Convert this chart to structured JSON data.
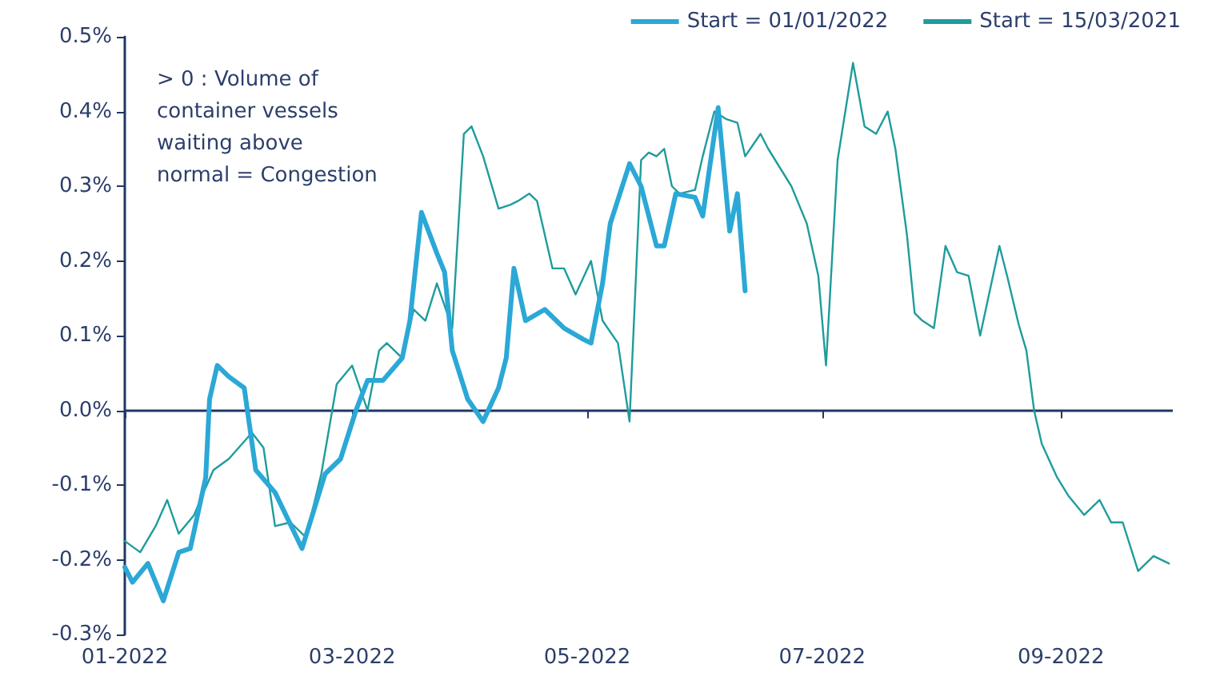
{
  "chart_data": {
    "type": "line",
    "annotations": [
      "> 0 : Volume of container vessels waiting above normal = Congestion"
    ],
    "series": [
      {
        "name": "Start = 01/01/2022",
        "color": "#2ba8d6",
        "x": [
          "2022-01-01",
          "2022-01-03",
          "2022-01-07",
          "2022-01-11",
          "2022-01-15",
          "2022-01-18",
          "2022-01-22",
          "2022-01-23",
          "2022-01-25",
          "2022-01-28",
          "2022-02-01",
          "2022-02-04",
          "2022-02-09",
          "2022-02-16",
          "2022-02-22",
          "2022-02-26",
          "2022-03-02",
          "2022-03-05",
          "2022-03-09",
          "2022-03-14",
          "2022-03-16",
          "2022-03-19",
          "2022-03-23",
          "2022-03-25",
          "2022-03-27",
          "2022-03-31",
          "2022-04-04",
          "2022-04-08",
          "2022-04-10",
          "2022-04-12",
          "2022-04-15",
          "2022-04-20",
          "2022-04-25",
          "2022-04-30",
          "2022-05-02",
          "2022-05-05",
          "2022-05-07",
          "2022-05-12",
          "2022-05-15",
          "2022-05-19",
          "2022-05-21",
          "2022-05-24",
          "2022-05-29",
          "2022-05-31",
          "2022-06-04",
          "2022-06-07",
          "2022-06-09",
          "2022-06-11"
        ],
        "values": [
          -0.21,
          -0.23,
          -0.205,
          -0.255,
          -0.19,
          -0.185,
          -0.09,
          0.015,
          0.06,
          0.045,
          0.03,
          -0.08,
          -0.11,
          -0.185,
          -0.085,
          -0.065,
          0.0,
          0.04,
          0.04,
          0.07,
          0.12,
          0.265,
          0.21,
          0.185,
          0.08,
          0.015,
          -0.015,
          0.03,
          0.07,
          0.19,
          0.12,
          0.135,
          0.11,
          0.095,
          0.09,
          0.17,
          0.25,
          0.33,
          0.3,
          0.22,
          0.22,
          0.29,
          0.285,
          0.26,
          0.405,
          0.24,
          0.29,
          0.16
        ]
      },
      {
        "name": "Start = 15/03/2021",
        "color": "#1f9c9c",
        "x": [
          "2022-01-01",
          "2022-01-05",
          "2022-01-09",
          "2022-01-12",
          "2022-01-15",
          "2022-01-19",
          "2022-01-21",
          "2022-01-24",
          "2022-01-28",
          "2022-02-03",
          "2022-02-06",
          "2022-02-09",
          "2022-02-13",
          "2022-02-17",
          "2022-02-21",
          "2022-02-25",
          "2022-03-01",
          "2022-03-05",
          "2022-03-08",
          "2022-03-10",
          "2022-03-14",
          "2022-03-17",
          "2022-03-20",
          "2022-03-23",
          "2022-03-27",
          "2022-03-30",
          "2022-04-01",
          "2022-04-04",
          "2022-04-08",
          "2022-04-11",
          "2022-04-13",
          "2022-04-16",
          "2022-04-18",
          "2022-04-22",
          "2022-04-25",
          "2022-04-28",
          "2022-05-02",
          "2022-05-05",
          "2022-05-09",
          "2022-05-12",
          "2022-05-15",
          "2022-05-17",
          "2022-05-19",
          "2022-05-21",
          "2022-05-23",
          "2022-05-25",
          "2022-05-29",
          "2022-05-31",
          "2022-06-03",
          "2022-06-06",
          "2022-06-09",
          "2022-06-11",
          "2022-06-15",
          "2022-06-17",
          "2022-06-23",
          "2022-06-27",
          "2022-06-30",
          "2022-07-02",
          "2022-07-05",
          "2022-07-09",
          "2022-07-12",
          "2022-07-15",
          "2022-07-18",
          "2022-07-20",
          "2022-07-23",
          "2022-07-25",
          "2022-07-27",
          "2022-07-30",
          "2022-08-02",
          "2022-08-05",
          "2022-08-08",
          "2022-08-11",
          "2022-08-16",
          "2022-08-18",
          "2022-08-21",
          "2022-08-23",
          "2022-08-25",
          "2022-08-27",
          "2022-08-31",
          "2022-09-03",
          "2022-09-07",
          "2022-09-11",
          "2022-09-14",
          "2022-09-17",
          "2022-09-21",
          "2022-09-25",
          "2022-09-29"
        ],
        "values": [
          -0.175,
          -0.19,
          -0.155,
          -0.12,
          -0.165,
          -0.14,
          -0.115,
          -0.08,
          -0.065,
          -0.03,
          -0.05,
          -0.155,
          -0.15,
          -0.17,
          -0.085,
          0.035,
          0.06,
          0.0,
          0.08,
          0.09,
          0.07,
          0.135,
          0.12,
          0.17,
          0.11,
          0.37,
          0.38,
          0.34,
          0.27,
          0.275,
          0.28,
          0.29,
          0.28,
          0.19,
          0.19,
          0.155,
          0.2,
          0.12,
          0.09,
          -0.015,
          0.335,
          0.345,
          0.34,
          0.35,
          0.3,
          0.29,
          0.295,
          0.34,
          0.4,
          0.39,
          0.385,
          0.34,
          0.37,
          0.35,
          0.3,
          0.25,
          0.18,
          0.06,
          0.335,
          0.465,
          0.38,
          0.37,
          0.4,
          0.35,
          0.235,
          0.13,
          0.12,
          0.11,
          0.22,
          0.185,
          0.18,
          0.1,
          0.22,
          0.18,
          0.115,
          0.08,
          0.0,
          -0.045,
          -0.09,
          -0.115,
          -0.14,
          -0.12,
          -0.15,
          -0.15,
          -0.215,
          -0.195,
          -0.205
        ]
      }
    ],
    "xlim": [
      "2022-01-01",
      "2022-09-30"
    ],
    "xticks": [
      {
        "value": "2022-01-01",
        "label": "01-2022"
      },
      {
        "value": "2022-03-01",
        "label": "03-2022"
      },
      {
        "value": "2022-05-01",
        "label": "05-2022"
      },
      {
        "value": "2022-07-01",
        "label": "07-2022"
      },
      {
        "value": "2022-09-01",
        "label": "09-2022"
      }
    ],
    "ylim": [
      -0.3,
      0.5
    ],
    "yticks": [
      {
        "value": -0.3,
        "label": "-0.3%"
      },
      {
        "value": -0.2,
        "label": "-0.2%"
      },
      {
        "value": -0.1,
        "label": "-0.1%"
      },
      {
        "value": 0,
        "label": "0.0%"
      },
      {
        "value": 0.1,
        "label": "0.1%"
      },
      {
        "value": 0.2,
        "label": "0.2%"
      },
      {
        "value": 0.3,
        "label": "0.3%"
      },
      {
        "value": 0.4,
        "label": "0.4%"
      },
      {
        "value": 0.5,
        "label": "0.5%"
      }
    ],
    "ref_lines": [
      {
        "axis": "y",
        "value": 0,
        "color": "#1f3864"
      }
    ],
    "grid": false,
    "legend": "top right",
    "marker": "none",
    "line_style": "solid"
  }
}
